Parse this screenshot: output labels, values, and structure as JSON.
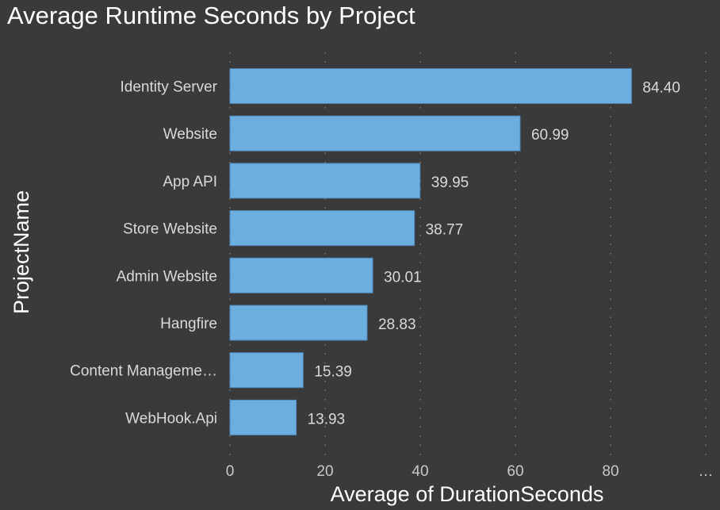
{
  "chart_data": {
    "type": "bar",
    "orientation": "horizontal",
    "title": "Average Runtime Seconds by Project",
    "xlabel": "Average of DurationSeconds",
    "ylabel": "ProjectName",
    "categories": [
      "Identity Server",
      "Website",
      "App API",
      "Store Website",
      "Admin Website",
      "Hangfire",
      "Content Manageme…",
      "WebHook.Api"
    ],
    "values": [
      84.4,
      60.99,
      39.95,
      38.77,
      30.01,
      28.83,
      15.39,
      13.93
    ],
    "data_labels": [
      "84.40",
      "60.99",
      "39.95",
      "38.77",
      "30.01",
      "28.83",
      "15.39",
      "13.93"
    ],
    "xlim": [
      0,
      100
    ],
    "x_ticks": [
      0,
      20,
      40,
      60,
      80,
      100
    ],
    "x_tick_labels": [
      "0",
      "20",
      "40",
      "60",
      "80",
      "…"
    ],
    "grid": "vertical dotted",
    "legend": "none",
    "colors": {
      "background": "#3a3a3a",
      "bar": "#6caee0",
      "bar_border": "#4f87b8",
      "text": "#d9d9d9"
    }
  }
}
